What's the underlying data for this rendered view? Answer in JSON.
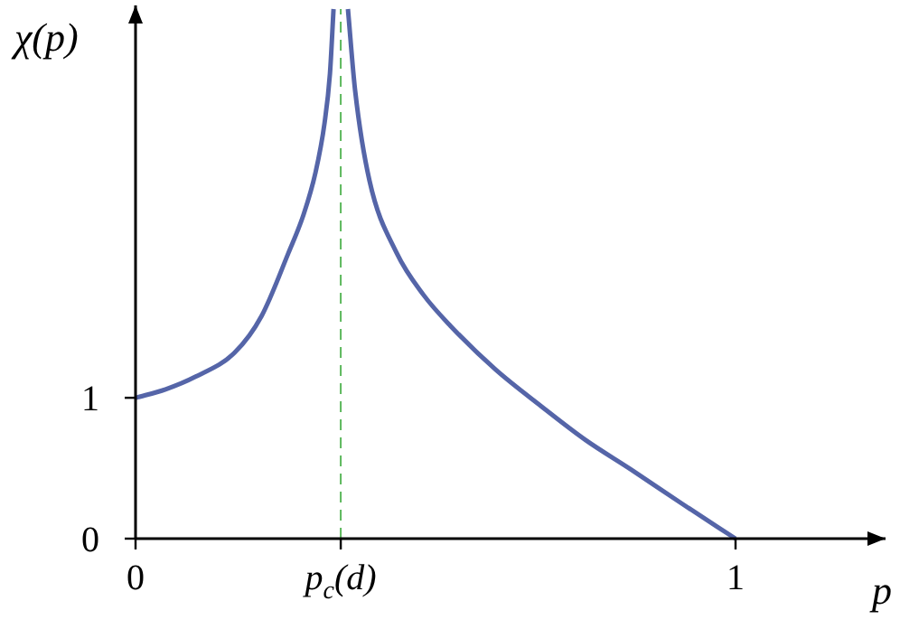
{
  "chart_data": {
    "type": "line",
    "xlabel": "p",
    "ylabel": "χ(p)",
    "xlim": [
      0,
      1.25
    ],
    "ylim": [
      0,
      3.76
    ],
    "xticks": [
      0,
      {
        "value": 0.342,
        "label": "p$_{c}$(d)"
      },
      1
    ],
    "yticks": [
      0,
      1
    ],
    "grid": false,
    "legend": false,
    "marker": "none",
    "line_style": "solid",
    "ref_lines": [
      {
        "axis": "x",
        "value": 0.342,
        "color": "#5cb85c",
        "line_style": "dashed"
      }
    ],
    "series": [
      {
        "color": "#5565a8",
        "x": [
          0,
          0.05,
          0.1,
          0.165,
          0.21,
          0.255,
          0.28,
          0.3,
          0.315,
          0.324,
          0.33
        ],
        "values": [
          1,
          1.06,
          1.15,
          1.32,
          1.58,
          2.03,
          2.3,
          2.6,
          2.95,
          3.3,
          3.76
        ]
      },
      {
        "color": "#5565a8",
        "x": [
          0.354,
          0.366,
          0.39,
          0.435,
          0.48,
          0.525,
          0.6,
          0.676,
          0.75,
          0.826,
          0.91,
          1
        ],
        "values": [
          3.76,
          3.18,
          2.54,
          2.03,
          1.73,
          1.51,
          1.2,
          0.94,
          0.7,
          0.49,
          0.25,
          0
        ]
      }
    ]
  }
}
